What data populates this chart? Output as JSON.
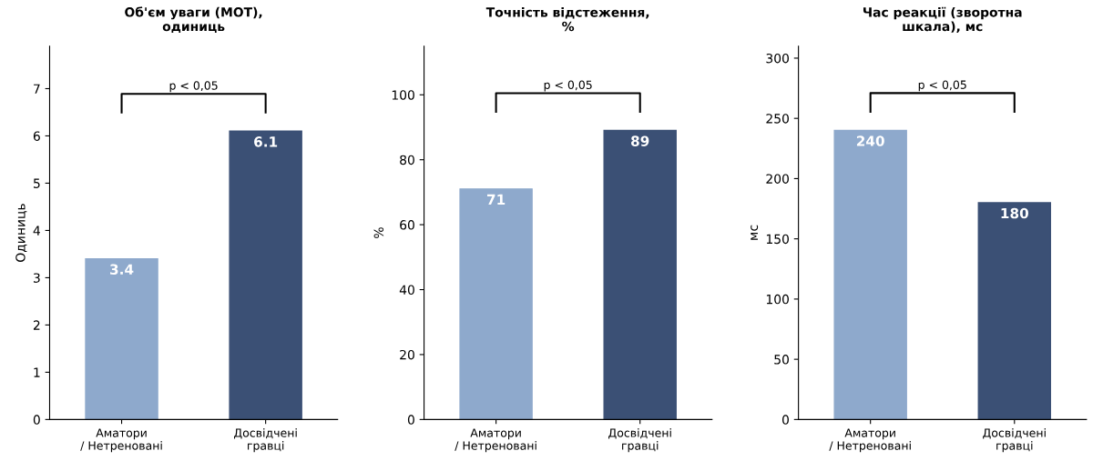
{
  "chart_data": [
    {
      "type": "bar",
      "title": "Об'єм уваги (MOT),\nодиниць",
      "ylabel": "Одиниць",
      "categories": [
        "Аматори\n/ Нетреновані",
        "Досвідчені\nгравці"
      ],
      "values": [
        3.4,
        6.1
      ],
      "colors": [
        "#8ea9cc",
        "#3b5075"
      ],
      "ylim": [
        0,
        7.9
      ],
      "yticks": [
        0,
        1,
        2,
        3,
        4,
        5,
        6,
        7
      ],
      "data_labels": true,
      "grid": false,
      "annotations": [
        "p < 0,05"
      ]
    },
    {
      "type": "bar",
      "title": "Точність відстеження,\n%",
      "ylabel": "%",
      "categories": [
        "Аматори\n/ Нетреновані",
        "Досвідчені\nгравці"
      ],
      "values": [
        71,
        89
      ],
      "colors": [
        "#8ea9cc",
        "#3b5075"
      ],
      "ylim": [
        0,
        115
      ],
      "yticks": [
        0,
        20,
        40,
        60,
        80,
        100
      ],
      "data_labels": true,
      "grid": false,
      "annotations": [
        "p < 0,05"
      ]
    },
    {
      "type": "bar",
      "title": "Час реакції (зворотна\nшкала), мс",
      "ylabel": "мс",
      "categories": [
        "Аматори\n/ Нетреновані",
        "Досвідчені\nгравці"
      ],
      "values": [
        240,
        180
      ],
      "colors": [
        "#8ea9cc",
        "#3b5075"
      ],
      "ylim": [
        0,
        310
      ],
      "yticks": [
        0,
        50,
        100,
        150,
        200,
        250,
        300
      ],
      "data_labels": true,
      "grid": false,
      "annotations": [
        "p < 0,05"
      ]
    }
  ]
}
